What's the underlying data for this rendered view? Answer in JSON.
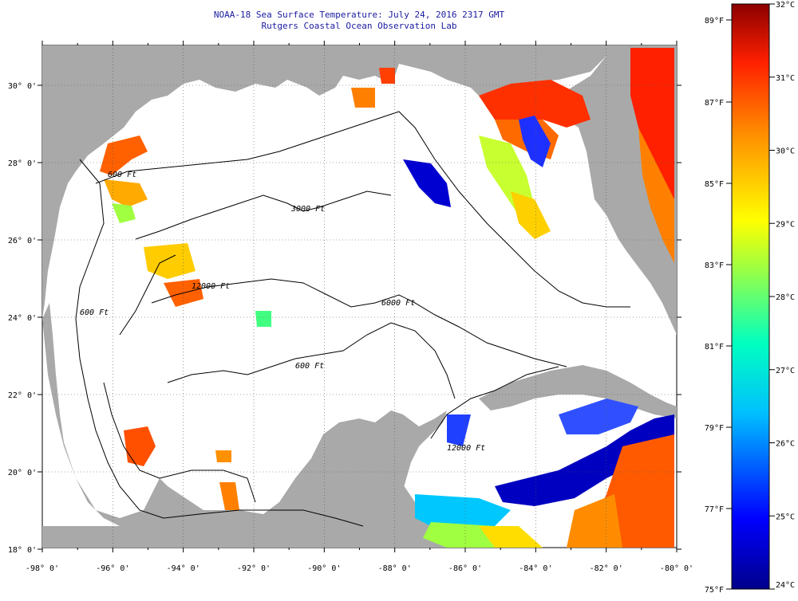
{
  "header": {
    "title": "NOAA-18 Sea Surface Temperature:  July 24, 2016 2317 GMT",
    "subtitle": "Rutgers Coastal Ocean Observation Lab"
  },
  "map": {
    "lon_labels": [
      "-98° 0'",
      "-96° 0'",
      "-94° 0'",
      "-92° 0'",
      "-90° 0'",
      "-88° 0'",
      "-86° 0'",
      "-84° 0'",
      "-82° 0'",
      "-80° 0'"
    ],
    "lat_labels": [
      "30° 0'",
      "28° 0'",
      "26° 0'",
      "24° 0'",
      "22° 0'",
      "20° 0'",
      "18° 0'"
    ],
    "contour_labels": [
      "600 Ft",
      "3000 Ft",
      "12000 Ft",
      "6000 Ft",
      "600 Ft",
      "12000 Ft",
      "600 Ft"
    ],
    "land_color": "#a9a9a9",
    "water_color": "#ffffff"
  },
  "colorbar": {
    "fahrenheit": [
      "89°F",
      "87°F",
      "85°F",
      "83°F",
      "81°F",
      "79°F",
      "77°F",
      "75°F"
    ],
    "celsius": [
      "32°C",
      "31°C",
      "30°C",
      "29°C",
      "28°C",
      "27°C",
      "26°C",
      "25°C",
      "24°C"
    ],
    "min_c": 24,
    "max_c": 32
  }
}
